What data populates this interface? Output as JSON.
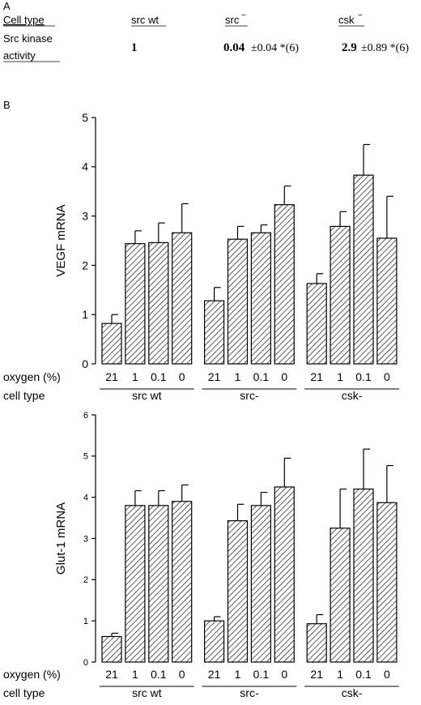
{
  "panel_a": {
    "label": "A",
    "header": {
      "cell_type": "Cell type",
      "src_wt": "src wt",
      "src_minus": "src",
      "src_minus_sup": "−",
      "csk_minus": "csk",
      "csk_minus_sup": "−"
    },
    "row": {
      "label_line1": "Src kinase",
      "label_line2": "activity",
      "src_wt_value": "1",
      "src_minus_value": "0.04",
      "src_minus_sd": "±0.04 *(6)",
      "csk_minus_value": "2.9",
      "csk_minus_sd": "±0.89 *(6)"
    }
  },
  "panel_b": {
    "label": "B"
  },
  "chart_data": [
    {
      "type": "bar",
      "ylabel": "VEGF mRNA",
      "ylim": [
        0,
        5
      ],
      "yticks": [
        "0",
        "1",
        "2",
        "3",
        "4",
        "5"
      ],
      "oxygen_label": "oxygen (%)",
      "celltype_label": "cell type",
      "groups": [
        "src wt",
        "src-",
        "csk-"
      ],
      "categories": [
        "21",
        "1",
        "0.1",
        "0",
        "21",
        "1",
        "0.1",
        "0",
        "21",
        "1",
        "0.1",
        "0"
      ],
      "values": [
        0.82,
        2.44,
        2.46,
        2.66,
        1.28,
        2.53,
        2.66,
        3.23,
        1.63,
        2.79,
        3.83,
        2.55
      ],
      "errors": [
        0.18,
        0.26,
        0.4,
        0.59,
        0.27,
        0.26,
        0.16,
        0.38,
        0.2,
        0.3,
        0.62,
        0.85
      ],
      "pattern": "hatched"
    },
    {
      "type": "bar",
      "ylabel": "Glut-1 mRNA",
      "ylim": [
        0,
        6
      ],
      "yticks": [
        "0",
        "1",
        "2",
        "3",
        "4",
        "5",
        "6"
      ],
      "oxygen_label": "oxygen (%)",
      "celltype_label": "cell type",
      "groups": [
        "src wt",
        "src-",
        "csk-"
      ],
      "categories": [
        "21",
        "1",
        "0.1",
        "0",
        "21",
        "1",
        "0.1",
        "0",
        "21",
        "1",
        "0.1",
        "0"
      ],
      "values": [
        0.62,
        3.8,
        3.8,
        3.9,
        1.0,
        3.43,
        3.8,
        4.25,
        0.93,
        3.25,
        4.2,
        3.87
      ],
      "errors": [
        0.08,
        0.36,
        0.36,
        0.4,
        0.1,
        0.4,
        0.32,
        0.7,
        0.22,
        0.95,
        0.97,
        0.9
      ],
      "pattern": "hatched"
    }
  ]
}
